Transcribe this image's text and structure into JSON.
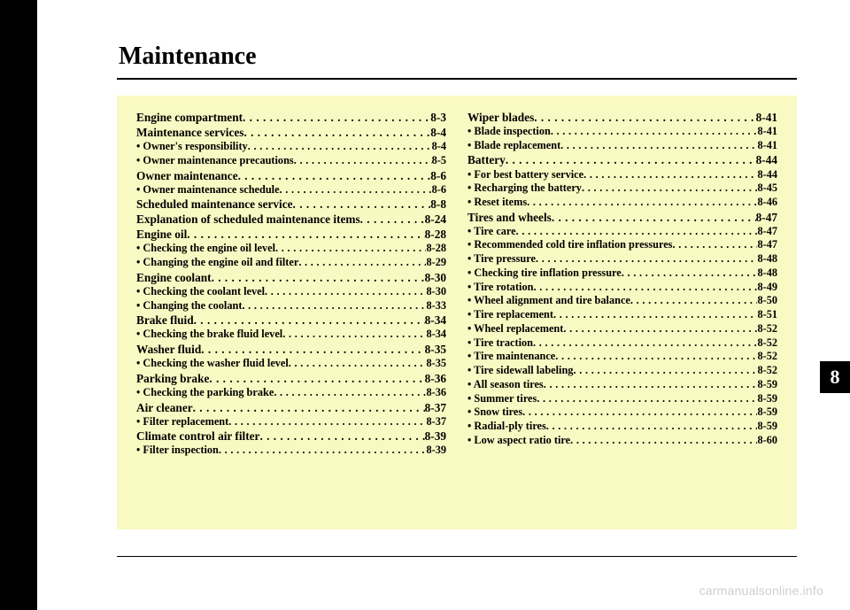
{
  "title": "Maintenance",
  "tab": "8",
  "watermark": "carmanualsonline.info",
  "columns": {
    "left": [
      {
        "type": "head",
        "label": "Engine compartment",
        "page": "8-3"
      },
      {
        "type": "head",
        "label": "Maintenance services",
        "page": "8-4"
      },
      {
        "type": "sub",
        "label": "• Owner's responsibility",
        "page": "8-4"
      },
      {
        "type": "sub",
        "label": "• Owner maintenance precautions",
        "page": "8-5"
      },
      {
        "type": "head",
        "label": "Owner maintenance",
        "page": "8-6"
      },
      {
        "type": "sub",
        "label": "• Owner maintenance schedule",
        "page": "8-6"
      },
      {
        "type": "head",
        "label": "Scheduled maintenance service",
        "page": "8-8"
      },
      {
        "type": "head",
        "label": "Explanation of scheduled maintenance items",
        "page": "8-24"
      },
      {
        "type": "head",
        "label": "Engine oil",
        "page": "8-28"
      },
      {
        "type": "sub",
        "label": "• Checking the engine oil level",
        "page": "8-28"
      },
      {
        "type": "sub",
        "label": "• Changing the engine oil and filter",
        "page": "8-29"
      },
      {
        "type": "head",
        "label": "Engine coolant",
        "page": "8-30"
      },
      {
        "type": "sub",
        "label": "• Checking the coolant level",
        "page": "8-30"
      },
      {
        "type": "sub",
        "label": "• Changing the coolant",
        "page": "8-33"
      },
      {
        "type": "head",
        "label": "Brake fluid",
        "page": "8-34"
      },
      {
        "type": "sub",
        "label": "• Checking the brake fluid level",
        "page": "8-34"
      },
      {
        "type": "head",
        "label": "Washer fluid",
        "page": "8-35"
      },
      {
        "type": "sub",
        "label": "• Checking the washer fluid level",
        "page": "8-35"
      },
      {
        "type": "head",
        "label": "Parking brake",
        "page": "8-36"
      },
      {
        "type": "sub",
        "label": "• Checking the parking brake",
        "page": "8-36"
      },
      {
        "type": "head",
        "label": "Air cleaner",
        "page": "8-37"
      },
      {
        "type": "sub",
        "label": "• Filter replacement",
        "page": "8-37"
      },
      {
        "type": "head",
        "label": "Climate control air filter",
        "page": "8-39"
      },
      {
        "type": "sub",
        "label": "• Filter inspection",
        "page": "8-39"
      }
    ],
    "right": [
      {
        "type": "head",
        "label": "Wiper blades",
        "page": "8-41"
      },
      {
        "type": "sub",
        "label": "• Blade inspection",
        "page": "8-41"
      },
      {
        "type": "sub",
        "label": "• Blade replacement",
        "page": "8-41"
      },
      {
        "type": "head",
        "label": "Battery",
        "page": "8-44"
      },
      {
        "type": "sub",
        "label": "• For best battery service",
        "page": "8-44"
      },
      {
        "type": "sub",
        "label": "• Recharging the battery",
        "page": "8-45"
      },
      {
        "type": "sub",
        "label": "• Reset items",
        "page": "8-46"
      },
      {
        "type": "head",
        "label": "Tires and wheels",
        "page": "8-47"
      },
      {
        "type": "sub",
        "label": "• Tire care",
        "page": "8-47"
      },
      {
        "type": "sub",
        "label": "• Recommended cold tire inflation pressures",
        "page": "8-47"
      },
      {
        "type": "sub",
        "label": "• Tire pressure",
        "page": "8-48"
      },
      {
        "type": "sub",
        "label": "• Checking tire inflation pressure",
        "page": "8-48"
      },
      {
        "type": "sub",
        "label": "• Tire rotation",
        "page": "8-49"
      },
      {
        "type": "sub",
        "label": "• Wheel alignment and tire balance",
        "page": "8-50"
      },
      {
        "type": "sub",
        "label": "• Tire replacement",
        "page": "8-51"
      },
      {
        "type": "sub",
        "label": "• Wheel replacement",
        "page": "8-52"
      },
      {
        "type": "sub",
        "label": "• Tire traction",
        "page": "8-52"
      },
      {
        "type": "sub",
        "label": "• Tire maintenance",
        "page": "8-52"
      },
      {
        "type": "sub",
        "label": "• Tire sidewall labeling",
        "page": "8-52"
      },
      {
        "type": "sub",
        "label": "• All season tires",
        "page": "8-59"
      },
      {
        "type": "sub",
        "label": "• Summer tires",
        "page": "8-59"
      },
      {
        "type": "sub",
        "label": "• Snow tires",
        "page": "8-59"
      },
      {
        "type": "sub",
        "label": "• Radial-ply tires",
        "page": "8-59"
      },
      {
        "type": "sub",
        "label": "• Low aspect ratio tire",
        "page": "8-60"
      }
    ]
  }
}
